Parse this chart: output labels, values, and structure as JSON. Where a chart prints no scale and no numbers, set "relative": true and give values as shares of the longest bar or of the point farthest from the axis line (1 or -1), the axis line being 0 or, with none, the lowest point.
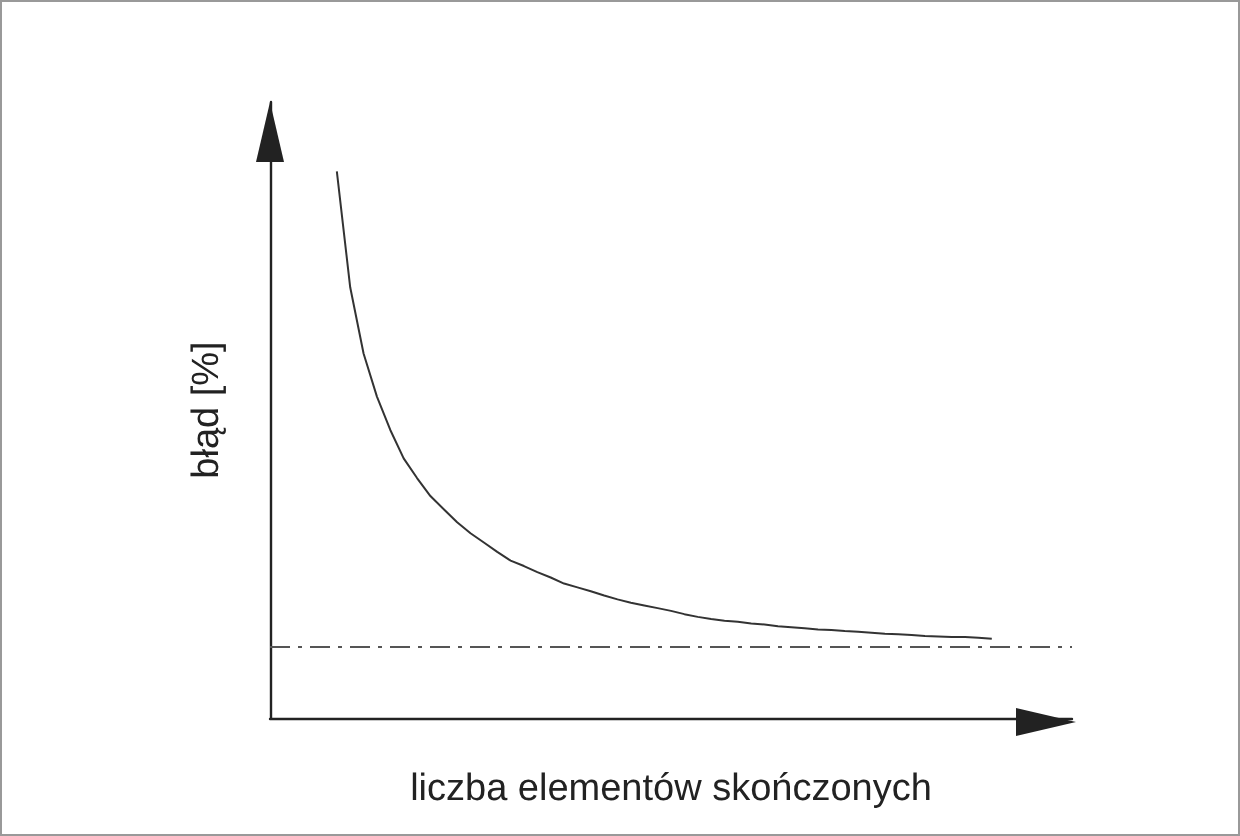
{
  "chart_data": {
    "type": "line",
    "relative": true,
    "xlabel": "liczba elementów skończonych",
    "ylabel": "błąd [%]",
    "tick_labels": false,
    "marker": "none",
    "categories": [
      null,
      null,
      null,
      null,
      null,
      null,
      null,
      null,
      null,
      null,
      null,
      null,
      null,
      null,
      null,
      null,
      null,
      null,
      null,
      null,
      null,
      null,
      null,
      null,
      null,
      null,
      null,
      null,
      null,
      null,
      null,
      null,
      null,
      null,
      null,
      null,
      null,
      null,
      null,
      null,
      null,
      null,
      null,
      null,
      null,
      null,
      null,
      null,
      null,
      null,
      null,
      null,
      null,
      null,
      null,
      null,
      null,
      null,
      null,
      null,
      null
    ],
    "series": [
      {
        "color": "#333333",
        "line_style": "solid",
        "values": [
          null,
          null,
          null,
          null,
          null,
          1,
          0.788,
          0.667,
          0.588,
          0.527,
          0.475,
          0.439,
          0.406,
          0.382,
          0.358,
          0.338,
          0.321,
          0.304,
          0.288,
          0.278,
          0.267,
          0.257,
          0.246,
          0.239,
          0.232,
          0.224,
          0.217,
          0.211,
          0.206,
          0.201,
          0.196,
          0.19,
          0.185,
          0.181,
          0.178,
          0.176,
          0.173,
          0.171,
          0.168,
          0.166,
          0.164,
          0.162,
          0.161,
          0.159,
          0.158,
          0.156,
          0.154,
          0.153,
          0.152,
          0.15,
          0.149,
          0.148,
          0.148,
          0.147,
          0.145,
          null,
          null,
          null,
          null,
          null,
          null
        ]
      }
    ],
    "ref_lines": [
      {
        "axis": "y",
        "value": 0.133,
        "color": "#555555",
        "line_style": "dashed"
      }
    ]
  }
}
